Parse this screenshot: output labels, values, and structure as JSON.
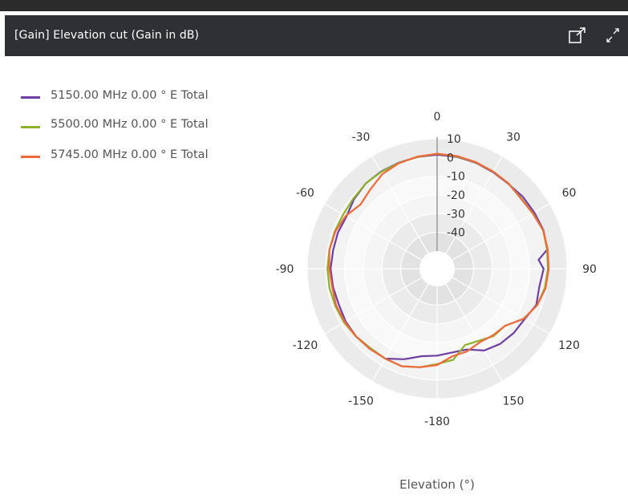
{
  "panel": {
    "title": "[Gain] Elevation cut (Gain in dB)",
    "icons": [
      "popout-icon",
      "expand-icon"
    ]
  },
  "colors": {
    "header_bg": "#2e3033",
    "ring_dark": "#e4e4e4",
    "ring_light": "#f6f6f6",
    "grid": "#ffffff",
    "series": [
      "#6f3fa3",
      "#8db32a",
      "#ef6a3a"
    ]
  },
  "chart_data": {
    "type": "polar-line",
    "xlabel": "Elevation (°)",
    "angle_unit": "degrees",
    "angle_ticks": [
      0,
      30,
      60,
      90,
      120,
      150,
      -180,
      -150,
      -120,
      -90,
      -60,
      -30
    ],
    "radial_ticks": [
      10,
      0,
      -10,
      -20,
      -30,
      -40
    ],
    "radial_range": [
      -50,
      10
    ],
    "legend_position": "top-left",
    "series": [
      {
        "name": "5150.00 MHz 0.00 ° E Total",
        "color": "#6f3fa3",
        "points": [
          [
            0,
            1.5
          ],
          [
            10,
            1.3
          ],
          [
            20,
            0.8
          ],
          [
            30,
            0.2
          ],
          [
            40,
            -0.2
          ],
          [
            50,
            0.4
          ],
          [
            60,
            0.6
          ],
          [
            70,
            1.0
          ],
          [
            80,
            0.4
          ],
          [
            85,
            -5
          ],
          [
            90,
            -2.5
          ],
          [
            100,
            -4
          ],
          [
            110,
            -3
          ],
          [
            120,
            -5.5
          ],
          [
            130,
            -6
          ],
          [
            140,
            -7
          ],
          [
            150,
            -9
          ],
          [
            160,
            -13.5
          ],
          [
            170,
            -14
          ],
          [
            180,
            -13
          ],
          [
            -170,
            -12
          ],
          [
            -160,
            -8
          ],
          [
            -150,
            -4
          ],
          [
            -140,
            -4
          ],
          [
            -130,
            -3
          ],
          [
            -120,
            -3
          ],
          [
            -110,
            -3.5
          ],
          [
            -100,
            -3
          ],
          [
            -90,
            -2.5
          ],
          [
            -80,
            -3
          ],
          [
            -70,
            -3
          ],
          [
            -60,
            -3.5
          ],
          [
            -50,
            -1.5
          ],
          [
            -40,
            0
          ],
          [
            -30,
            0.5
          ],
          [
            -20,
            0.8
          ],
          [
            -10,
            1.2
          ]
        ]
      },
      {
        "name": "5500.00 MHz 0.00 ° E Total",
        "color": "#8db32a",
        "points": [
          [
            0,
            2.0
          ],
          [
            10,
            1.5
          ],
          [
            20,
            1.0
          ],
          [
            30,
            0.5
          ],
          [
            40,
            0
          ],
          [
            50,
            -0.8
          ],
          [
            60,
            -0.2
          ],
          [
            70,
            0.8
          ],
          [
            80,
            0.2
          ],
          [
            90,
            -0.2
          ],
          [
            100,
            -1.0
          ],
          [
            110,
            -2.5
          ],
          [
            120,
            -6
          ],
          [
            130,
            -12
          ],
          [
            140,
            -12.5
          ],
          [
            150,
            -15
          ],
          [
            160,
            -16
          ],
          [
            170,
            -10
          ],
          [
            180,
            -8.5
          ],
          [
            -170,
            -6
          ],
          [
            -160,
            -4
          ],
          [
            -150,
            -4
          ],
          [
            -140,
            -4
          ],
          [
            -130,
            -3
          ],
          [
            -120,
            -2
          ],
          [
            -110,
            -1.5
          ],
          [
            -100,
            -1
          ],
          [
            -90,
            -0.8
          ],
          [
            -80,
            -1
          ],
          [
            -70,
            -1.2
          ],
          [
            -60,
            -1.5
          ],
          [
            -50,
            -1
          ],
          [
            -40,
            0
          ],
          [
            -30,
            0.3
          ],
          [
            -20,
            0.7
          ],
          [
            -10,
            1.2
          ]
        ]
      },
      {
        "name": "5745.00 MHz 0.00 ° E Total",
        "color": "#ef6a3a",
        "points": [
          [
            0,
            2.0
          ],
          [
            10,
            1.7
          ],
          [
            20,
            1.2
          ],
          [
            30,
            0.5
          ],
          [
            40,
            0
          ],
          [
            50,
            -1.0
          ],
          [
            60,
            -0.4
          ],
          [
            70,
            0.8
          ],
          [
            80,
            0.6
          ],
          [
            90,
            0.2
          ],
          [
            100,
            -0.5
          ],
          [
            110,
            -2.5
          ],
          [
            120,
            -6
          ],
          [
            130,
            -12
          ],
          [
            140,
            -13
          ],
          [
            150,
            -14
          ],
          [
            160,
            -12.5
          ],
          [
            170,
            -12
          ],
          [
            180,
            -8
          ],
          [
            -170,
            -6
          ],
          [
            -160,
            -4
          ],
          [
            -150,
            -4
          ],
          [
            -140,
            -3.5
          ],
          [
            -130,
            -3
          ],
          [
            -120,
            -2.5
          ],
          [
            -110,
            -2
          ],
          [
            -100,
            -2.5
          ],
          [
            -90,
            -1.8
          ],
          [
            -80,
            -1
          ],
          [
            -70,
            -1.5
          ],
          [
            -60,
            -3
          ],
          [
            -50,
            -6
          ],
          [
            -40,
            -4
          ],
          [
            -30,
            -1
          ],
          [
            -20,
            0.5
          ],
          [
            -10,
            1.4
          ]
        ]
      }
    ]
  }
}
